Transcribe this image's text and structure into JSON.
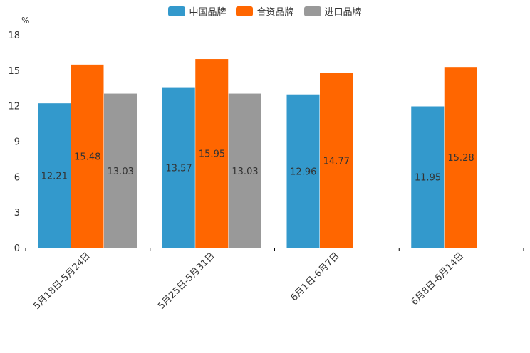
{
  "chart_data": {
    "type": "bar",
    "unit_label": "%",
    "categories": [
      "5月18日-5月24日",
      "5月25日-5月31日",
      "6月1日-6月7日",
      "6月8日-6月14日"
    ],
    "series": [
      {
        "name": "中国品牌",
        "color": "#3399cc",
        "values": [
          12.21,
          13.57,
          12.96,
          11.95
        ]
      },
      {
        "name": "合资品牌",
        "color": "#ff6600",
        "values": [
          15.48,
          15.95,
          14.77,
          15.28
        ]
      },
      {
        "name": "进口品牌",
        "color": "#999999",
        "values": [
          13.03,
          13.03,
          null,
          null
        ]
      }
    ],
    "ylim": [
      0,
      18
    ],
    "yticks": [
      0,
      3,
      6,
      9,
      12,
      15,
      18
    ],
    "legend_position": "top-center"
  }
}
